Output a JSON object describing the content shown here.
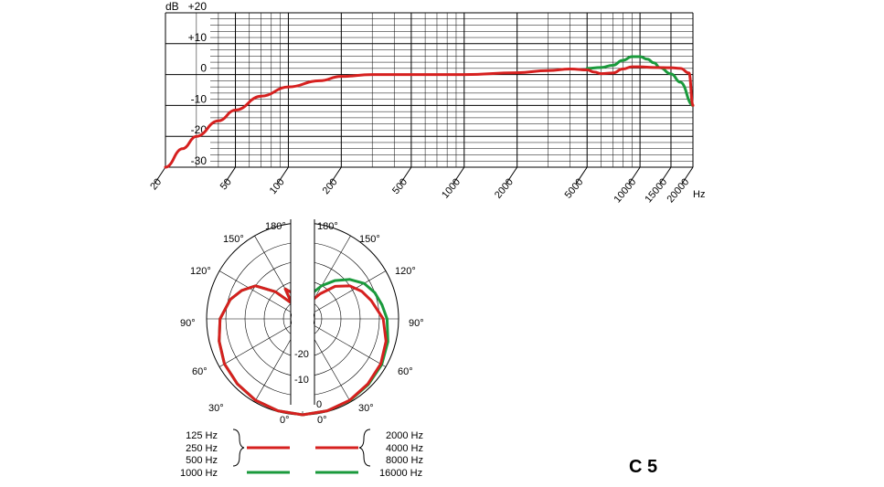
{
  "chart_data": [
    {
      "type": "line",
      "ylabel": "dB",
      "xlabel": "Hz",
      "x_scale": "log",
      "xlim": [
        20,
        20000
      ],
      "ylim": [
        -30,
        20
      ],
      "y_ticks": [
        20,
        10,
        0,
        -10,
        -20,
        -30
      ],
      "y_tick_labels": [
        "+20",
        "+10",
        "0",
        "-10",
        "-20",
        "-30"
      ],
      "x_ticks": [
        20,
        50,
        100,
        200,
        500,
        1000,
        2000,
        5000,
        10000,
        15000,
        20000
      ],
      "x_tick_labels": [
        "20",
        "50",
        "100",
        "200",
        "500",
        "1000",
        "2000",
        "5000",
        "10000",
        "15000",
        "20000"
      ],
      "grid": true,
      "series": [
        {
          "color": "#1a9a3c",
          "points": [
            [
              5000,
              2
            ],
            [
              6000,
              2.3
            ],
            [
              7000,
              3
            ],
            [
              8000,
              4.6
            ],
            [
              9000,
              5.8
            ],
            [
              10000,
              5.8
            ],
            [
              11000,
              5
            ],
            [
              12000,
              3.8
            ],
            [
              13000,
              2.2
            ],
            [
              15000,
              0.2
            ],
            [
              17000,
              -2.5
            ],
            [
              20000,
              -10
            ]
          ]
        },
        {
          "color": "#d6201f",
          "points": [
            [
              20,
              -30
            ],
            [
              25,
              -24
            ],
            [
              30,
              -20
            ],
            [
              40,
              -15
            ],
            [
              50,
              -11.5
            ],
            [
              70,
              -7
            ],
            [
              100,
              -4
            ],
            [
              150,
              -2
            ],
            [
              200,
              -0.6
            ],
            [
              300,
              0
            ],
            [
              500,
              0
            ],
            [
              1000,
              0
            ],
            [
              2000,
              0.6
            ],
            [
              3000,
              1.3
            ],
            [
              4000,
              1.8
            ],
            [
              5000,
              1.5
            ],
            [
              5500,
              0.8
            ],
            [
              6000,
              0.3
            ],
            [
              7000,
              0.5
            ],
            [
              8000,
              1.8
            ],
            [
              9000,
              2.5
            ],
            [
              10000,
              2.5
            ],
            [
              12000,
              2.3
            ],
            [
              15000,
              2.2
            ],
            [
              17000,
              2
            ],
            [
              19000,
              0.5
            ],
            [
              20000,
              -10
            ]
          ]
        }
      ]
    },
    {
      "type": "polar",
      "angle_labels": [
        "0°",
        "30°",
        "60°",
        "90°",
        "120°",
        "150°",
        "180°"
      ],
      "ring_labels": [
        "0",
        "-10",
        "-20"
      ],
      "r_ticks": [
        0,
        -5,
        -10,
        -15,
        -20,
        -25
      ],
      "series_left": [
        {
          "color": "#1a9a3c",
          "points": [
            [
              0,
              0
            ],
            [
              15,
              -0.2
            ],
            [
              30,
              -0.5
            ],
            [
              45,
              -1
            ],
            [
              60,
              -1.5
            ],
            [
              75,
              -2.5
            ],
            [
              90,
              -3.5
            ],
            [
              105,
              -5.5
            ],
            [
              115,
              -7.5
            ],
            [
              125,
              -10
            ],
            [
              135,
              -15
            ],
            [
              145,
              -20
            ],
            [
              150,
              -16
            ],
            [
              160,
              -18
            ],
            [
              170,
              -22
            ],
            [
              180,
              -23
            ]
          ]
        },
        {
          "color": "#d6201f",
          "points": [
            [
              0,
              0
            ],
            [
              15,
              -0.2
            ],
            [
              30,
              -0.5
            ],
            [
              45,
              -1
            ],
            [
              60,
              -1.5
            ],
            [
              75,
              -2.5
            ],
            [
              90,
              -3.5
            ],
            [
              105,
              -5.5
            ],
            [
              115,
              -7.5
            ],
            [
              125,
              -10
            ],
            [
              135,
              -15
            ],
            [
              145,
              -20
            ],
            [
              150,
              -16
            ],
            [
              160,
              -18
            ],
            [
              170,
              -22
            ],
            [
              180,
              -23
            ]
          ]
        }
      ],
      "series_right": [
        {
          "color": "#1a9a3c",
          "points": [
            [
              0,
              0
            ],
            [
              15,
              -0.2
            ],
            [
              30,
              -0.4
            ],
            [
              45,
              -0.8
            ],
            [
              60,
              -1.2
            ],
            [
              75,
              -2
            ],
            [
              90,
              -3
            ],
            [
              100,
              -4
            ],
            [
              110,
              -5
            ],
            [
              120,
              -6.5
            ],
            [
              130,
              -9
            ],
            [
              140,
              -12
            ],
            [
              150,
              -15
            ],
            [
              160,
              -18
            ],
            [
              170,
              -22
            ],
            [
              180,
              -23
            ]
          ]
        },
        {
          "color": "#d6201f",
          "points": [
            [
              0,
              0
            ],
            [
              15,
              -0.2
            ],
            [
              30,
              -0.5
            ],
            [
              45,
              -1
            ],
            [
              60,
              -1.5
            ],
            [
              75,
              -2.5
            ],
            [
              90,
              -4
            ],
            [
              105,
              -6.5
            ],
            [
              115,
              -8
            ],
            [
              125,
              -10
            ],
            [
              135,
              -13
            ],
            [
              145,
              -17
            ],
            [
              155,
              -20
            ],
            [
              165,
              -22
            ],
            [
              180,
              -23
            ]
          ]
        }
      ]
    }
  ],
  "legend": {
    "left_red_labels": [
      "125 Hz",
      "250 Hz",
      "500 Hz"
    ],
    "left_green_label": "1000 Hz",
    "right_red_labels": [
      "2000 Hz",
      "4000 Hz",
      "8000 Hz"
    ],
    "right_green_label": "16000 Hz",
    "red": "#d6201f",
    "green": "#1a9a3c"
  },
  "model": "C 5"
}
